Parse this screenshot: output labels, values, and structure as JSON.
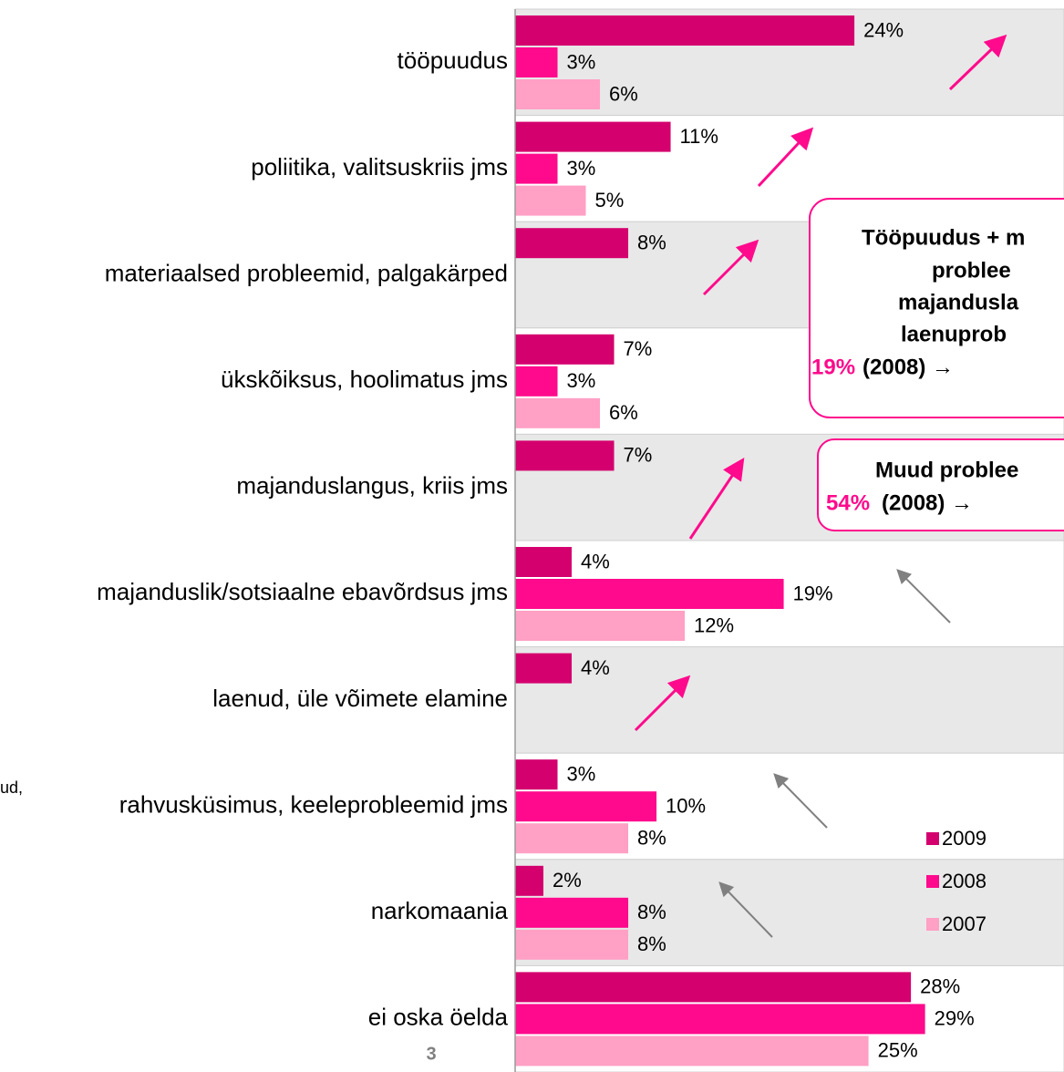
{
  "chart_data": {
    "type": "bar",
    "orientation": "horizontal",
    "categories": [
      "tööpuudus",
      "poliitika, valitsuskriis jms",
      "materiaalsed probleemid, palgakärped",
      "ükskõiksus, hoolimatus jms",
      "majanduslangus, kriis jms",
      "majanduslik/sotsiaalne ebavõrdsus jms",
      "laenud, üle võimete elamine",
      "rahvusküsimus, keeleprobleemid jms",
      "narkomaania",
      "ei oska öelda"
    ],
    "series": [
      {
        "name": "2009",
        "color": "#d4006e",
        "values": [
          24,
          11,
          8,
          7,
          7,
          4,
          4,
          3,
          2,
          28
        ],
        "value_labels": [
          "24%",
          "11%",
          "8%",
          "7%",
          "7%",
          "4%",
          "4%",
          "3%",
          "2%",
          "28%"
        ]
      },
      {
        "name": "2008",
        "color": "#ff0a8c",
        "values": [
          3,
          3,
          null,
          3,
          null,
          19,
          null,
          10,
          8,
          29
        ],
        "value_labels": [
          "3%",
          "3%",
          null,
          "3%",
          null,
          "19%",
          null,
          "10%",
          "8%",
          "29%"
        ]
      },
      {
        "name": "2007",
        "color": "#ffa0c4",
        "values": [
          6,
          5,
          null,
          6,
          null,
          12,
          null,
          8,
          8,
          25
        ],
        "value_labels": [
          "6%",
          "5%",
          null,
          "6%",
          null,
          "12%",
          null,
          "8%",
          "8%",
          "25%"
        ]
      }
    ],
    "xlim": [
      0,
      38.7
    ],
    "legend": "lower right",
    "annotations": [
      "Tööpuudus + m",
      "problee",
      "majandusla",
      "laenuprob",
      "19%",
      "(2008) →",
      "Muud problee",
      "54%",
      "(2008) →",
      "ud,",
      "3"
    ]
  }
}
